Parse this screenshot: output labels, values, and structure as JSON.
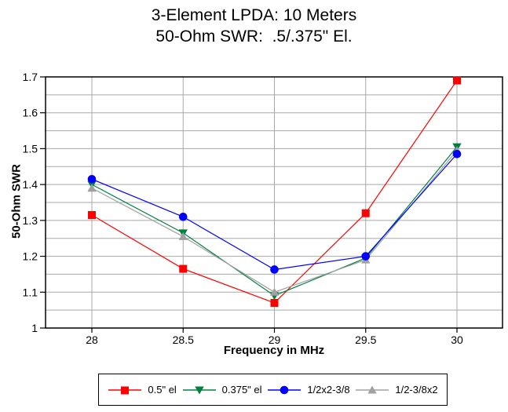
{
  "title": {
    "line1": "3-Element LPDA: 10 Meters",
    "line2": "50-Ohm SWR:  .5/.375\" El."
  },
  "chart_data": {
    "type": "line",
    "title": "3-Element LPDA: 10 Meters",
    "subtitle": "50-Ohm SWR:  .5/.375\" El.",
    "xlabel": "Frequency in MHz",
    "ylabel": "50-Ohm SWR",
    "x": [
      28,
      28.5,
      29,
      29.5,
      30
    ],
    "x_tick_labels": [
      "28",
      "28.5",
      "29",
      "29.5",
      "30"
    ],
    "y_major_ticks": [
      1,
      1.1,
      1.2,
      1.3,
      1.4,
      1.5,
      1.6,
      1.7
    ],
    "y_tick_labels": [
      "1",
      "1.1",
      "1.2",
      "1.3",
      "1.4",
      "1.5",
      "1.6",
      "1.7"
    ],
    "xlim": [
      27.746,
      30.25
    ],
    "ylim": [
      1.0,
      1.7
    ],
    "y_grid_step": 0.05,
    "grid": true,
    "legend_position": "bottom",
    "z_order": [
      0,
      1,
      3,
      2
    ],
    "series": [
      {
        "name": "0.5\" el",
        "marker": "square",
        "color": "#ff0000",
        "values": [
          1.315,
          1.165,
          1.07,
          1.32,
          1.69
        ]
      },
      {
        "name": "0.375\" el",
        "marker": "triangle-down",
        "color": "#008040",
        "values": [
          1.4,
          1.265,
          1.09,
          1.195,
          1.505
        ]
      },
      {
        "name": "1/2x2-3/8",
        "marker": "circle",
        "color": "#0000ff",
        "values": [
          1.415,
          1.31,
          1.163,
          1.2,
          1.485
        ]
      },
      {
        "name": "1/2-3/8x2",
        "marker": "triangle-up",
        "color": "#a0a0a0",
        "values": [
          1.39,
          1.255,
          1.1,
          1.19,
          1.495
        ]
      }
    ]
  },
  "colors": {
    "background": "#ffffff",
    "grid": "#a8a8a8",
    "axis": "#000000",
    "text": "#000000"
  }
}
